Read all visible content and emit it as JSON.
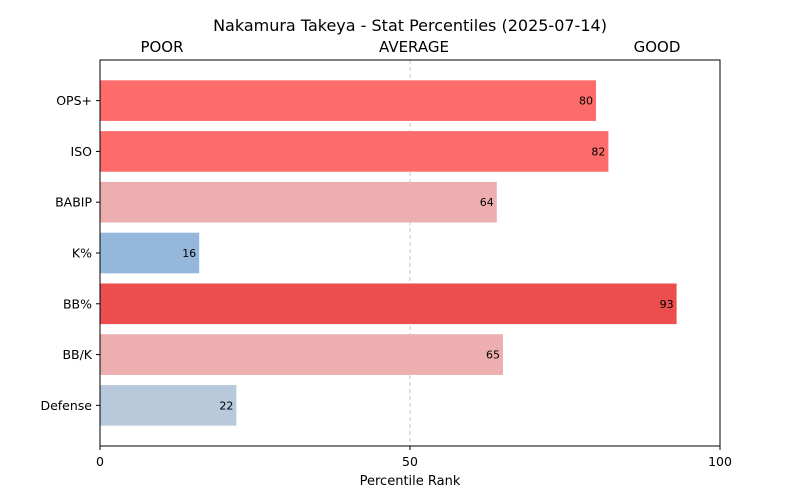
{
  "chart_data": {
    "type": "bar",
    "orientation": "horizontal",
    "title": "Nakamura Takeya - Stat Percentiles (2025-07-14)",
    "xlabel": "Percentile Rank",
    "ylabel": "",
    "xlim": [
      0,
      100
    ],
    "xticks": [
      "0",
      "50",
      "100"
    ],
    "zone_labels": [
      "POOR",
      "AVERAGE",
      "GOOD"
    ],
    "reference_line": 50,
    "categories": [
      "OPS+",
      "ISO",
      "BABIP",
      "K%",
      "BB%",
      "BB/K",
      "Defense"
    ],
    "values": [
      80,
      82,
      64,
      16,
      93,
      65,
      22
    ],
    "value_labels": [
      "80",
      "82",
      "64",
      "16",
      "93",
      "65",
      "22"
    ],
    "colors": [
      "#fe6b6b",
      "#fe6b6b",
      "#ecaeae",
      "#94b7db",
      "#ec4d4d",
      "#ecaeae",
      "#b8c9dc"
    ],
    "grid": false,
    "legend": "none"
  }
}
